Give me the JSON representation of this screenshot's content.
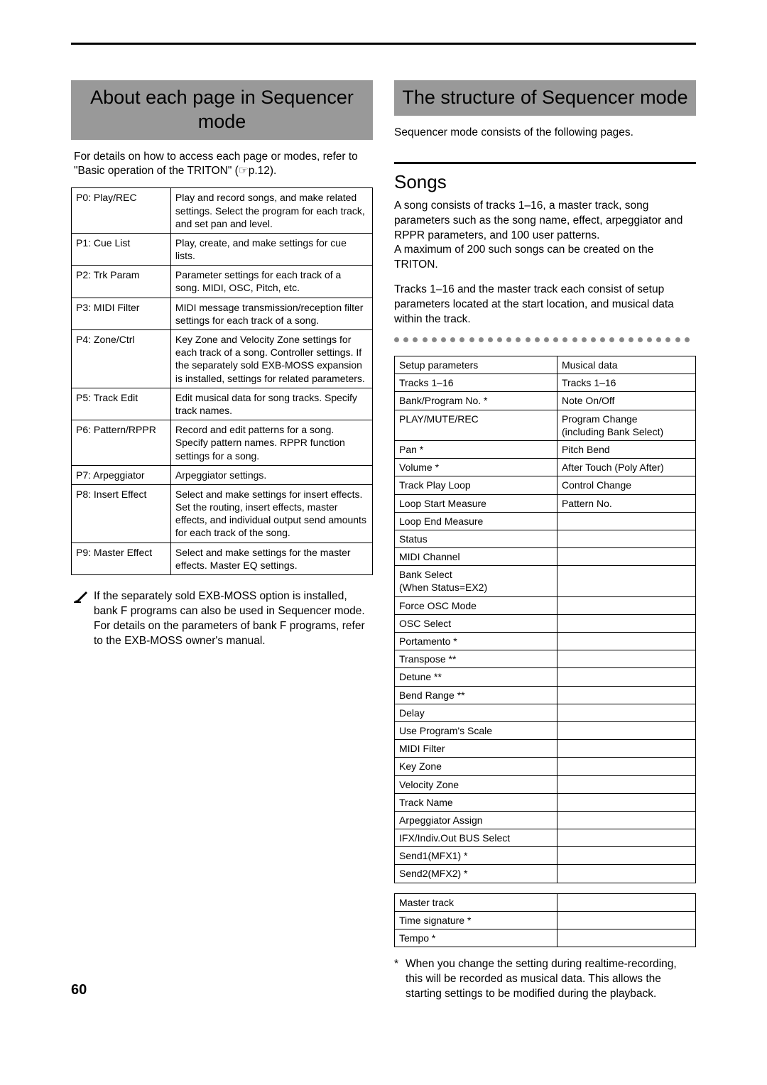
{
  "page_number": "60",
  "left": {
    "title": "About each page in Sequencer mode",
    "intro": "For details on how to access each page or modes, refer to \"Basic operation of the TRITON\" (☞p.12).",
    "pages_table": [
      [
        "P0: Play/REC",
        "Play and record songs, and make related settings. Select the program for each track, and set pan and level."
      ],
      [
        "P1: Cue List",
        "Play, create, and make settings for cue lists."
      ],
      [
        "P2: Trk Param",
        "Parameter settings for each track of a song. MIDI, OSC, Pitch, etc."
      ],
      [
        "P3: MIDI Filter",
        "MIDI message transmission/reception filter settings for each track of a song."
      ],
      [
        "P4: Zone/Ctrl",
        "Key Zone and Velocity Zone settings for each track of a song. Controller settings. If the separately sold EXB-MOSS expansion is installed, settings for related parameters."
      ],
      [
        "P5: Track Edit",
        "Edit musical data for song tracks. Specify track names."
      ],
      [
        "P6: Pattern/RPPR",
        "Record and edit patterns for a song. Specify pattern names. RPPR function settings for a song."
      ],
      [
        "P7: Arpeggiator",
        "Arpeggiator settings."
      ],
      [
        "P8: Insert Effect",
        "Select and make settings for insert effects. Set the routing, insert effects, master effects, and individual output send amounts for each track of the song."
      ],
      [
        "P9: Master Effect",
        "Select and make settings for the master effects. Master EQ settings."
      ]
    ],
    "note": "If the separately sold EXB-MOSS option is installed, bank F programs can also be used in Sequencer mode. For details on the parameters of bank F programs, refer to the EXB-MOSS owner's manual."
  },
  "right": {
    "title": "The structure of Sequencer mode",
    "intro": "Sequencer mode consists of the following pages.",
    "subhead": "Songs",
    "para1": "A song consists of tracks 1–16, a master track, song parameters such as the song name, effect, arpeggiator and RPPR parameters, and 100 user patterns.\nA maximum of 200 such songs can be created on the TRITON.",
    "para2": "Tracks 1–16 and the master track each consist of setup parameters located at the start location, and musical data within the track.",
    "setup_table": [
      [
        "Setup parameters",
        "Musical data"
      ],
      [
        "Tracks 1–16",
        "Tracks 1–16"
      ],
      [
        "Bank/Program No. *",
        "Note On/Off"
      ],
      [
        "PLAY/MUTE/REC",
        "Program Change\n(including Bank Select)"
      ],
      [
        "Pan *",
        "Pitch Bend"
      ],
      [
        "Volume *",
        "After Touch (Poly After)"
      ],
      [
        "Track Play Loop",
        "Control Change"
      ],
      [
        "Loop Start Measure",
        "Pattern No."
      ],
      [
        "Loop End Measure",
        ""
      ],
      [
        "Status",
        ""
      ],
      [
        "MIDI Channel",
        ""
      ],
      [
        "Bank Select\n(When Status=EX2)",
        ""
      ],
      [
        "Force OSC Mode",
        ""
      ],
      [
        "OSC Select",
        ""
      ],
      [
        "Portamento *",
        ""
      ],
      [
        "Transpose **",
        ""
      ],
      [
        "Detune **",
        ""
      ],
      [
        "Bend Range **",
        ""
      ],
      [
        "Delay",
        ""
      ],
      [
        "Use Program's Scale",
        ""
      ],
      [
        "MIDI Filter",
        ""
      ],
      [
        "Key Zone",
        ""
      ],
      [
        "Velocity Zone",
        ""
      ],
      [
        "Track Name",
        ""
      ],
      [
        "Arpeggiator Assign",
        ""
      ],
      [
        "IFX/Indiv.Out BUS Select",
        ""
      ],
      [
        "Send1(MFX1) *",
        ""
      ],
      [
        "Send2(MFX2) *",
        ""
      ]
    ],
    "master_table": [
      [
        "Master track",
        ""
      ],
      [
        "Time signature *",
        ""
      ],
      [
        "Tempo *",
        ""
      ]
    ],
    "footnote_mark": "*",
    "footnote": "When you change the setting during realtime-recording, this will be recorded as musical data. This allows the starting settings to be modified during the playback."
  }
}
